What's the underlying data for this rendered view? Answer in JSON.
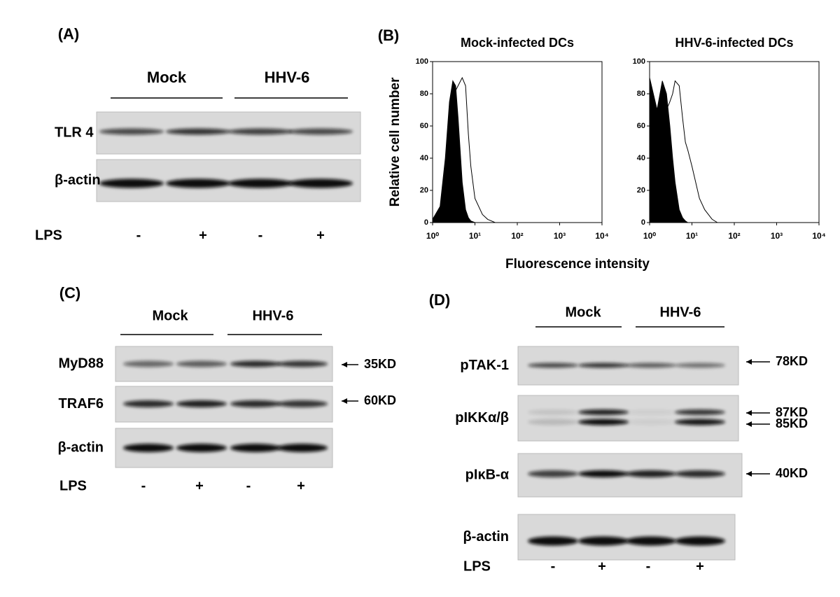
{
  "panels": {
    "A": {
      "label": "(A)",
      "groups": [
        "Mock",
        "HHV-6"
      ],
      "rows": [
        "TLR 4",
        "β-actin"
      ],
      "lps_label": "LPS",
      "lps": [
        "-",
        "+",
        "-",
        "+"
      ]
    },
    "B": {
      "label": "(B)",
      "xlabel": "Fluorescence intensity"
    },
    "C": {
      "label": "(C)",
      "groups": [
        "Mock",
        "HHV-6"
      ],
      "rows": [
        "MyD88",
        "TRAF6",
        "β-actin"
      ],
      "markers": [
        "35KD",
        "60KD"
      ],
      "lps_label": "LPS",
      "lps": [
        "-",
        "+",
        "-",
        "+"
      ]
    },
    "D": {
      "label": "(D)",
      "groups": [
        "Mock",
        "HHV-6"
      ],
      "rows": [
        "pTAK-1",
        "pIKKα/β",
        "pIκB-α",
        "β-actin"
      ],
      "markers": [
        "78KD",
        "87KD",
        "85KD",
        "40KD"
      ],
      "lps_label": "LPS",
      "lps": [
        "-",
        "+",
        "-",
        "+"
      ]
    }
  },
  "chart_data": [
    {
      "type": "histogram-line",
      "title": "Mock-infected DCs",
      "ylabel": "Relative cell number",
      "log_x": true,
      "x": [
        1,
        1.5,
        2,
        2.5,
        3,
        3.5,
        4,
        5,
        6,
        7,
        8,
        10,
        15,
        20,
        30,
        40
      ],
      "series": [
        {
          "color": "#000000",
          "fill": true,
          "values": [
            2,
            10,
            40,
            75,
            88,
            85,
            65,
            25,
            8,
            3,
            1,
            0,
            0,
            0,
            0,
            0
          ]
        },
        {
          "color": "#000000",
          "fill": false,
          "values": [
            1,
            5,
            20,
            50,
            75,
            82,
            85,
            90,
            85,
            55,
            35,
            15,
            5,
            2,
            0,
            0
          ]
        }
      ],
      "xlim": [
        1,
        10000
      ],
      "xticks": [
        {
          "value": 1,
          "label": "10⁰"
        },
        {
          "value": 10,
          "label": "10¹"
        },
        {
          "value": 100,
          "label": "10²"
        },
        {
          "value": 1000,
          "label": "10³"
        },
        {
          "value": 10000,
          "label": "10⁴"
        }
      ],
      "ylim": [
        0,
        100
      ],
      "yticks": [
        0,
        20,
        40,
        60,
        80,
        100
      ]
    },
    {
      "type": "histogram-line",
      "title": "HHV-6-infected DCs",
      "log_x": true,
      "x": [
        1,
        1.5,
        2,
        2.5,
        3,
        3.5,
        4,
        5,
        6,
        7,
        8,
        10,
        15,
        20,
        30,
        40
      ],
      "series": [
        {
          "color": "#000000",
          "fill": true,
          "values": [
            90,
            70,
            88,
            80,
            60,
            40,
            25,
            8,
            3,
            1,
            0,
            0,
            0,
            0,
            0,
            0
          ]
        },
        {
          "color": "#000000",
          "fill": false,
          "values": [
            50,
            40,
            55,
            70,
            75,
            80,
            88,
            85,
            65,
            50,
            45,
            35,
            15,
            8,
            2,
            0
          ]
        }
      ],
      "xlim": [
        1,
        10000
      ],
      "xticks": [
        {
          "value": 1,
          "label": "10⁰"
        },
        {
          "value": 10,
          "label": "10¹"
        },
        {
          "value": 100,
          "label": "10²"
        },
        {
          "value": 1000,
          "label": "10³"
        },
        {
          "value": 10000,
          "label": "10⁴"
        }
      ],
      "ylim": [
        0,
        100
      ],
      "yticks": [
        0,
        20,
        40,
        60,
        80,
        100
      ]
    }
  ]
}
